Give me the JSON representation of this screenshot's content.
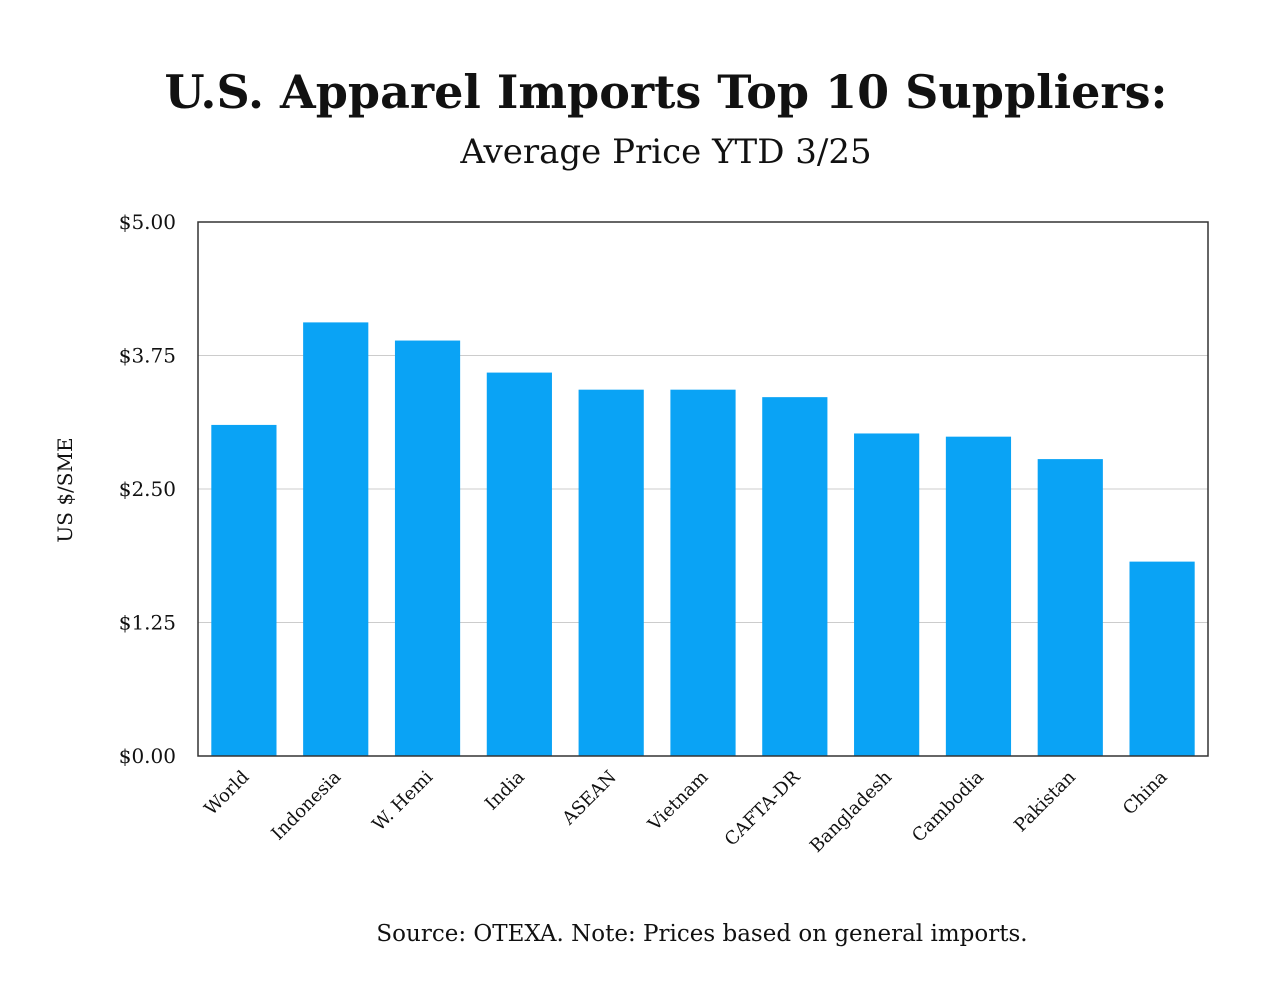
{
  "chart_data": {
    "type": "bar",
    "title": "U.S. Apparel Imports Top 10 Suppliers:",
    "subtitle": "Average Price YTD 3/25",
    "ylabel": "US $/SME",
    "xlabel": "",
    "categories": [
      "World",
      "Indonesia",
      "W. Hemi",
      "India",
      "ASEAN",
      "Vietnam",
      "CAFTA-DR",
      "Bangladesh",
      "Cambodia",
      "Pakistan",
      "China"
    ],
    "values": [
      3.1,
      4.06,
      3.89,
      3.59,
      3.43,
      3.43,
      3.36,
      3.02,
      2.99,
      2.78,
      1.82
    ],
    "ylim": [
      0,
      5
    ],
    "yticks": [
      0,
      1.25,
      2.5,
      3.75,
      5
    ],
    "ytick_labels": [
      "$0.00",
      "$1.25",
      "$2.50",
      "$3.75",
      "$5.00"
    ],
    "grid": true,
    "bar_color": "#0aa3f5",
    "source_note": "Source: OTEXA. Note: Prices based on general imports."
  }
}
